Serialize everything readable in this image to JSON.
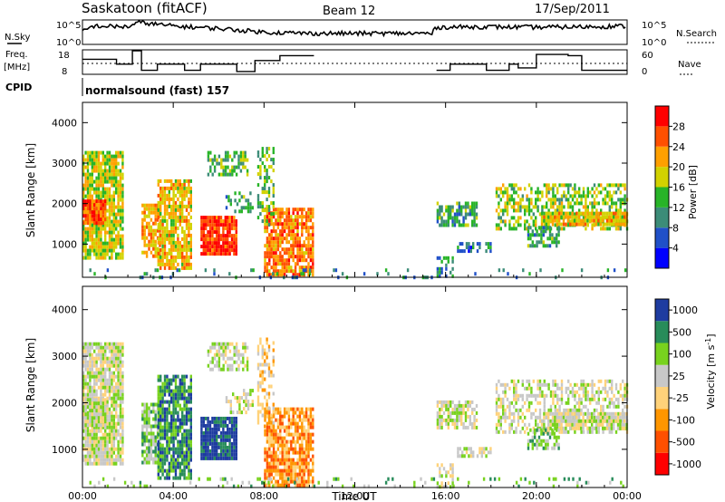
{
  "header": {
    "title": "Saskatoon (fitACF)",
    "beam": "Beam 12",
    "date": "17/Sep/2011"
  },
  "params": {
    "nsky_label": "N.Sky",
    "nsearch_label": "N.Search",
    "noise_ticks_left": [
      "10^5",
      "10^0"
    ],
    "noise_ticks_right": [
      "10^5",
      "10^0"
    ],
    "freq_label": "Freq.",
    "freq_unit": "[MHz]",
    "freq_ticks": [
      "18",
      "8"
    ],
    "nave_label": "Nave",
    "nave_ticks": [
      "60",
      "0"
    ],
    "cpid_label": "CPID",
    "cpid_text": "normalsound (fast) 157"
  },
  "colors": {
    "power": [
      "#0000ff",
      "#2050c8",
      "#3c8c78",
      "#28b428",
      "#d2d200",
      "#ffa000",
      "#ff5000",
      "#ff0000"
    ],
    "velocity": [
      "#ff0000",
      "#ff5000",
      "#ff9600",
      "#ffd27a",
      "#c8c8c8",
      "#78d21e",
      "#288c5a",
      "#1e3ca0"
    ]
  },
  "chart_data": [
    {
      "type": "heatmap",
      "name": "power",
      "xlabel": "Time UT",
      "ylabel": "Slant Range [km]",
      "x_ticks": [
        "00:00",
        "04:00",
        "08:00",
        "12:00",
        "16:00",
        "20:00",
        "00:00"
      ],
      "xlim_hours": [
        0,
        24
      ],
      "y_ticks": [
        1000,
        2000,
        3000,
        4000
      ],
      "ylim_km": [
        180,
        4500
      ],
      "colorbar_label": "Power [dB]",
      "colorbar_ticks": [
        "4",
        "8",
        "12",
        "16",
        "20",
        "24",
        "28"
      ],
      "colorbar_range": [
        0,
        32
      ]
    },
    {
      "type": "heatmap",
      "name": "velocity",
      "xlabel": "Time UT",
      "ylabel": "Slant Range [km]",
      "x_ticks": [
        "00:00",
        "04:00",
        "08:00",
        "12:00",
        "16:00",
        "20:00",
        "00:00"
      ],
      "xlim_hours": [
        0,
        24
      ],
      "y_ticks": [
        1000,
        2000,
        3000,
        4000
      ],
      "ylim_km": [
        180,
        4500
      ],
      "colorbar_label": "Velocity [m s",
      "colorbar_sup": "-1",
      "colorbar_label_close": "]",
      "colorbar_ticks": [
        "1000",
        "500",
        "100",
        "25",
        "-25",
        "-100",
        "-500",
        "-1000"
      ]
    }
  ],
  "echo_regions": [
    {
      "t0": 0.0,
      "t1": 1.8,
      "r0": 700,
      "r1": 3300,
      "d": 0.85,
      "p": 18,
      "v": 4
    },
    {
      "t0": 0.0,
      "t1": 1.0,
      "r0": 1500,
      "r1": 2100,
      "d": 0.95,
      "p": 27,
      "v": 4
    },
    {
      "t0": 2.6,
      "t1": 3.4,
      "r0": 700,
      "r1": 2000,
      "d": 0.7,
      "p": 22,
      "v": 5
    },
    {
      "t0": 3.3,
      "t1": 4.8,
      "r0": 400,
      "r1": 2600,
      "d": 0.8,
      "p": 20,
      "v": 6
    },
    {
      "t0": 5.2,
      "t1": 6.8,
      "r0": 800,
      "r1": 1700,
      "d": 0.9,
      "p": 28,
      "v": 7
    },
    {
      "t0": 5.5,
      "t1": 7.3,
      "r0": 2700,
      "r1": 3300,
      "d": 0.6,
      "p": 14,
      "v": 4
    },
    {
      "t0": 6.3,
      "t1": 7.5,
      "r0": 1800,
      "r1": 2300,
      "d": 0.4,
      "p": 12,
      "v": 4
    },
    {
      "t0": 8.0,
      "t1": 10.2,
      "r0": 200,
      "r1": 1900,
      "d": 0.8,
      "p": 24,
      "v": 2
    },
    {
      "t0": 7.7,
      "t1": 8.4,
      "r0": 1500,
      "r1": 3400,
      "d": 0.45,
      "p": 14,
      "v": 3
    },
    {
      "t0": 15.6,
      "t1": 17.4,
      "r0": 1500,
      "r1": 2050,
      "d": 0.7,
      "p": 12,
      "v": 4
    },
    {
      "t0": 15.6,
      "t1": 16.3,
      "r0": 200,
      "r1": 700,
      "d": 0.5,
      "p": 10,
      "v": 4
    },
    {
      "t0": 16.5,
      "t1": 18.0,
      "r0": 850,
      "r1": 1050,
      "d": 0.5,
      "p": 8,
      "v": 4
    },
    {
      "t0": 18.2,
      "t1": 24.0,
      "r0": 1400,
      "r1": 2500,
      "d": 0.5,
      "p": 16,
      "v": 4
    },
    {
      "t0": 20.2,
      "t1": 24.0,
      "r0": 1450,
      "r1": 1800,
      "d": 0.85,
      "p": 20,
      "v": 4
    },
    {
      "t0": 19.6,
      "t1": 21.0,
      "r0": 1000,
      "r1": 1450,
      "d": 0.55,
      "p": 12,
      "v": 5
    },
    {
      "t0": 0.3,
      "t1": 24.0,
      "r0": 180,
      "r1": 400,
      "d": 0.12,
      "p": 10,
      "v": 5
    }
  ],
  "noise_sky": [
    {
      "t": 0.0,
      "v": 0.55
    },
    {
      "t": 0.5,
      "v": 0.75
    },
    {
      "t": 2.0,
      "v": 0.72
    },
    {
      "t": 2.5,
      "v": 0.9
    },
    {
      "t": 4.0,
      "v": 0.75
    },
    {
      "t": 6.0,
      "v": 0.65
    },
    {
      "t": 8.0,
      "v": 0.5
    },
    {
      "t": 10.0,
      "v": 0.45
    },
    {
      "t": 12.0,
      "v": 0.45
    },
    {
      "t": 15.4,
      "v": 0.45
    },
    {
      "t": 15.6,
      "v": 0.7
    },
    {
      "t": 17.5,
      "v": 0.72
    },
    {
      "t": 20.0,
      "v": 0.7
    },
    {
      "t": 22.0,
      "v": 0.72
    },
    {
      "t": 24.0,
      "v": 0.75
    }
  ],
  "freq_steps": [
    {
      "t": 0.0,
      "v": 14.5
    },
    {
      "t": 1.5,
      "v": 12.5
    },
    {
      "t": 2.2,
      "v": 18
    },
    {
      "t": 2.6,
      "v": 10
    },
    {
      "t": 3.3,
      "v": 12.5
    },
    {
      "t": 4.5,
      "v": 10
    },
    {
      "t": 5.2,
      "v": 12.5
    },
    {
      "t": 6.8,
      "v": 9.5
    },
    {
      "t": 7.6,
      "v": 14
    },
    {
      "t": 8.7,
      "v": 16
    },
    {
      "t": 10.2,
      "v": 16
    },
    {
      "t": 15.6,
      "v": 10
    },
    {
      "t": 16.2,
      "v": 12.5
    },
    {
      "t": 17.8,
      "v": 10
    },
    {
      "t": 18.8,
      "v": 12.5
    },
    {
      "t": 19.2,
      "v": 11
    },
    {
      "t": 20.0,
      "v": 16.5
    },
    {
      "t": 21.4,
      "v": 16
    },
    {
      "t": 22.0,
      "v": 10
    },
    {
      "t": 24.0,
      "v": 10
    }
  ],
  "freq_gap": [
    10.2,
    15.6
  ]
}
